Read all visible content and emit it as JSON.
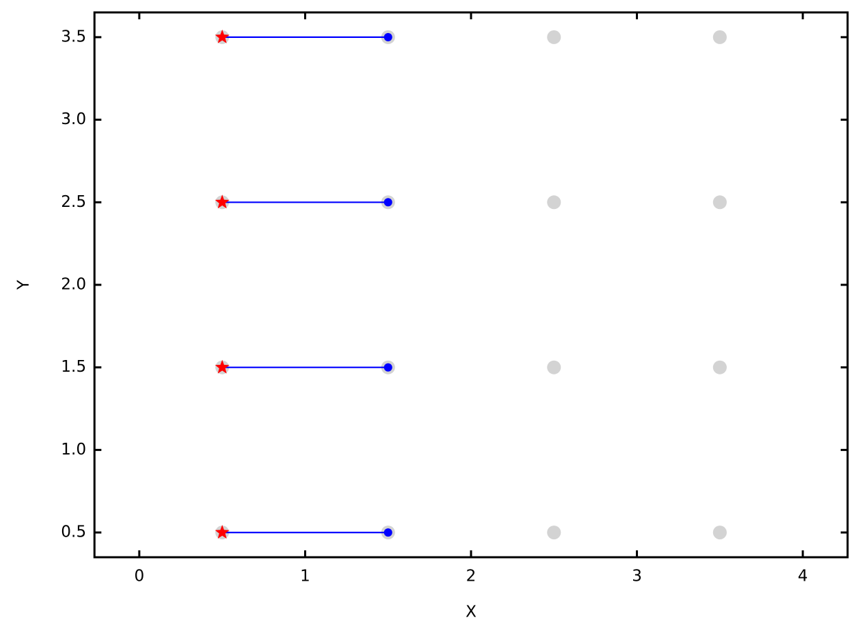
{
  "chart_data": {
    "type": "scatter",
    "xlabel": "X",
    "ylabel": "Y",
    "xlim": [
      -0.27,
      4.27
    ],
    "ylim": [
      0.35,
      3.65
    ],
    "xticks": [
      0,
      1,
      2,
      3,
      4
    ],
    "yticks": [
      {
        "value": 0.5,
        "label": "0.5"
      },
      {
        "value": 1.0,
        "label": "1.0"
      },
      {
        "value": 1.5,
        "label": "1.5"
      },
      {
        "value": 2.0,
        "label": "2.0"
      },
      {
        "value": 2.5,
        "label": "2.5"
      },
      {
        "value": 3.0,
        "label": "3.0"
      },
      {
        "value": 3.5,
        "label": "3.5"
      }
    ],
    "series": [
      {
        "kind": "points",
        "marker": "circle",
        "color": "#d3d3d3",
        "x": [
          0.5,
          1.5,
          2.5,
          3.5,
          0.5,
          1.5,
          2.5,
          3.5,
          0.5,
          1.5,
          2.5,
          3.5,
          0.5,
          1.5,
          2.5,
          3.5
        ],
        "y": [
          0.5,
          0.5,
          0.5,
          0.5,
          1.5,
          1.5,
          1.5,
          1.5,
          2.5,
          2.5,
          2.5,
          2.5,
          3.5,
          3.5,
          3.5,
          3.5
        ]
      },
      {
        "kind": "line",
        "color": "#0000ff",
        "x": [
          0.5,
          1.5,
          null,
          0.5,
          1.5,
          null,
          0.5,
          1.5,
          null,
          0.5,
          1.5
        ],
        "y": [
          0.5,
          0.5,
          null,
          1.5,
          1.5,
          null,
          2.5,
          2.5,
          null,
          3.5,
          3.5
        ]
      },
      {
        "kind": "points",
        "marker": "star",
        "color": "#ff0000",
        "x": [
          0.5,
          0.5,
          0.5,
          0.5
        ],
        "y": [
          0.5,
          1.5,
          2.5,
          3.5
        ]
      },
      {
        "kind": "points",
        "marker": "dot",
        "color": "#0000ff",
        "x": [
          1.5,
          1.5,
          1.5,
          1.5
        ],
        "y": [
          0.5,
          1.5,
          2.5,
          3.5
        ]
      }
    ]
  }
}
